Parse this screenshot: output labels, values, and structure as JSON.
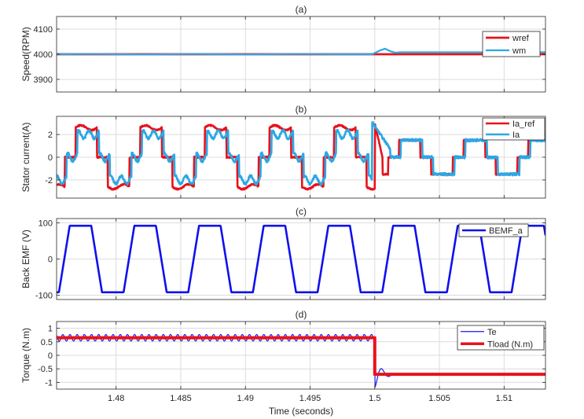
{
  "chart_data": [
    {
      "panel": "(a)",
      "type": "line",
      "title": "(a)",
      "xlabel": "",
      "ylabel": "Speed(RPM)",
      "xlim": [
        1.4754,
        1.5132
      ],
      "ylim": [
        3850,
        4150
      ],
      "yticks": [
        3900,
        4000,
        4100
      ],
      "ytick_labels": [
        "3900",
        "4000",
        "4100"
      ],
      "xticks": [
        1.48,
        1.485,
        1.49,
        1.495,
        1.5,
        1.505,
        1.51
      ],
      "xtick_labels": [],
      "grid": true,
      "legend_position": "top-right",
      "series": [
        {
          "name": "wref",
          "color": "#e8121b",
          "width": 2.8,
          "x": [
            1.4754,
            1.5,
            1.5,
            1.5132
          ],
          "y": [
            4000,
            4000,
            4000,
            4000
          ]
        },
        {
          "name": "wm",
          "color": "#2aa8e6",
          "width": 2.2,
          "x": [
            1.4754,
            1.478,
            1.482,
            1.486,
            1.49,
            1.494,
            1.498,
            1.4998,
            1.5004,
            1.5008,
            1.5012,
            1.5016,
            1.502,
            1.5132
          ],
          "y": [
            4000,
            4001,
            3999,
            4001,
            3999,
            4001,
            4000,
            4000,
            4015,
            4022,
            4012,
            4006,
            4008,
            4008
          ]
        }
      ]
    },
    {
      "panel": "(b)",
      "type": "line",
      "title": "(b)",
      "xlabel": "",
      "ylabel": "Stator current(A)",
      "xlim": [
        1.4754,
        1.5132
      ],
      "ylim": [
        -3.6,
        3.6
      ],
      "yticks": [
        -2,
        0,
        2
      ],
      "ytick_labels": [
        "-2",
        "0",
        "2"
      ],
      "xticks": [
        1.48,
        1.485,
        1.49,
        1.495,
        1.5,
        1.505,
        1.51
      ],
      "xtick_labels": [],
      "grid": true,
      "legend_position": "top-right",
      "series": [
        {
          "name": "Ia_ref",
          "color": "#e8121b",
          "width": 2.6,
          "waveform": "six-step current reference, 5 ms period",
          "amplitude_before": 2.6,
          "amplitude_after": 1.5,
          "step_time": 1.5
        },
        {
          "name": "Ia",
          "color": "#2aa8e6",
          "width": 2.6,
          "waveform": "measured phase current",
          "amplitude_before": 2.0,
          "amplitude_after": 1.5,
          "step_time": 1.5
        }
      ]
    },
    {
      "panel": "(c)",
      "type": "line",
      "title": "(c)",
      "xlabel": "",
      "ylabel": "Back EMF (V)",
      "xlim": [
        1.4754,
        1.5132
      ],
      "ylim": [
        -112,
        112
      ],
      "yticks": [
        -100,
        0,
        100
      ],
      "ytick_labels": [
        "-100",
        "0",
        "100"
      ],
      "xticks": [
        1.48,
        1.485,
        1.49,
        1.495,
        1.5,
        1.505,
        1.51
      ],
      "xtick_labels": [],
      "grid": true,
      "legend_position": "top-right",
      "series": [
        {
          "name": "BEMF_a",
          "color": "#1010ee",
          "width": 2.6,
          "waveform": "trapezoid",
          "amplitude": 92,
          "period": 0.005,
          "first_rise_start": 1.47558,
          "ramp": 0.000833,
          "flat": 0.001667
        }
      ]
    },
    {
      "panel": "(d)",
      "type": "line",
      "title": "(d)",
      "xlabel": "Time (seconds)",
      "ylabel": "Torque (N.m)",
      "xlim": [
        1.4754,
        1.5132
      ],
      "ylim": [
        -1.25,
        1.25
      ],
      "yticks": [
        -1,
        -0.5,
        0,
        0.5,
        1
      ],
      "ytick_labels": [
        "-1",
        "-0.5",
        "0",
        "0.5",
        "1"
      ],
      "xticks": [
        1.48,
        1.485,
        1.49,
        1.495,
        1.5,
        1.505,
        1.51
      ],
      "xtick_labels": [
        "1.48",
        "1.485",
        "1.49",
        "1.495",
        "1.5",
        "1.505",
        "1.51"
      ],
      "grid": true,
      "legend_position": "top-right",
      "series": [
        {
          "name": "Te",
          "color": "#1a1aee",
          "width": 1.2,
          "mean_before": 0.65,
          "ripple_before": 0.12,
          "mean_after": -0.7,
          "ripple_after": 0.03,
          "step_time": 1.5
        },
        {
          "name": "Tload (N.m)",
          "color": "#e8121b",
          "width": 4,
          "x": [
            1.4754,
            1.5,
            1.5,
            1.5132
          ],
          "y": [
            0.65,
            0.65,
            -0.7,
            -0.7
          ]
        }
      ]
    }
  ]
}
